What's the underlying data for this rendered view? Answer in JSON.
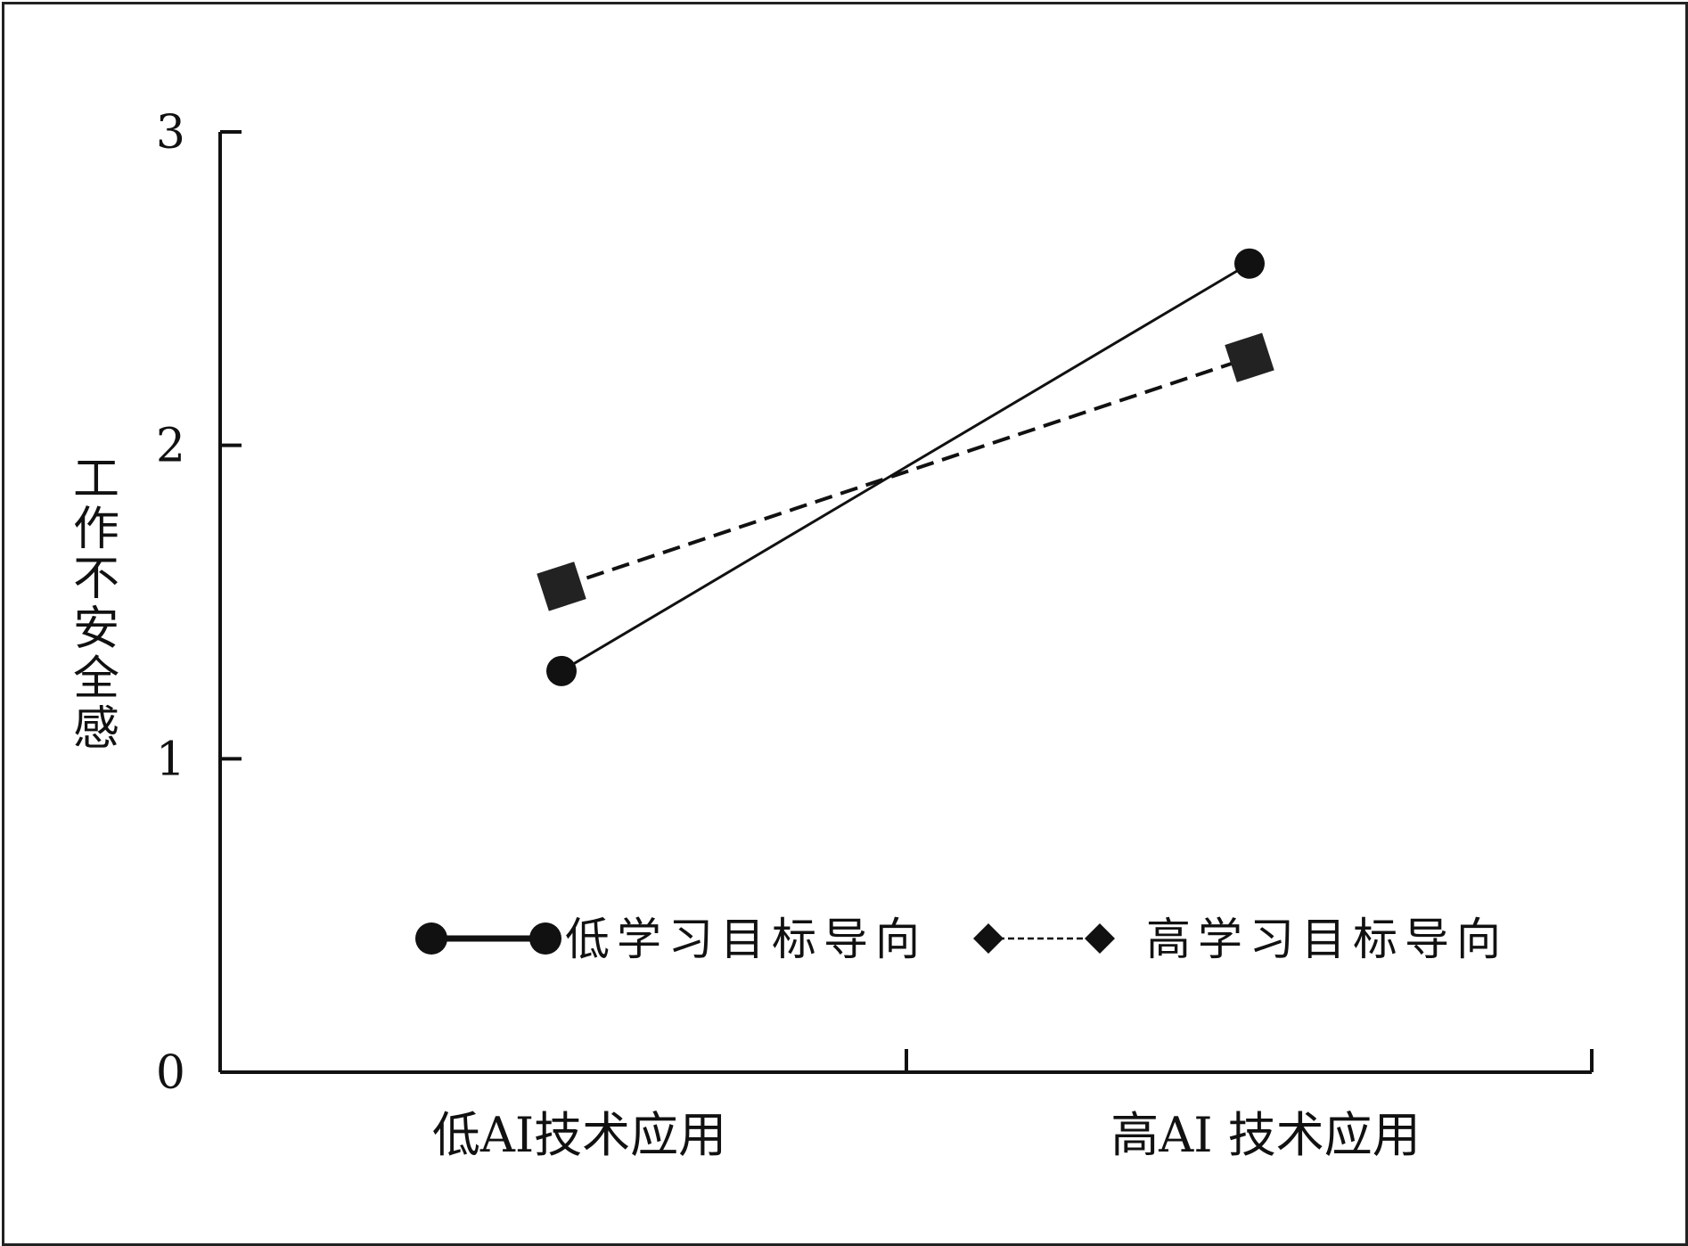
{
  "chart_data": {
    "type": "line",
    "ylabel": "工作不安全感",
    "xlabel": "",
    "ylim": [
      0,
      3
    ],
    "yticks": [
      "0",
      "1",
      "2",
      "3"
    ],
    "categories": [
      "低AI技术应用",
      "高AI 技术应用"
    ],
    "series": [
      {
        "name": "低学习目标导向",
        "values": [
          1.28,
          2.58
        ],
        "line": "solid",
        "marker": "circle"
      },
      {
        "name": "高学习目标导向",
        "values": [
          1.55,
          2.28
        ],
        "line": "dashed",
        "marker": "square"
      }
    ],
    "legend": "bottom",
    "grid": false
  }
}
